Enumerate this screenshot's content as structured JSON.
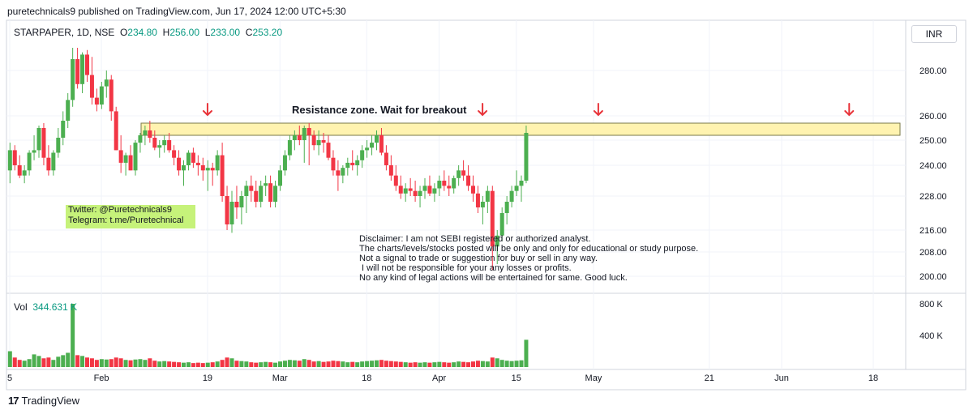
{
  "header": {
    "publish_line": "puretechnicals9 published on TradingView.com, Jun 17, 2024 12:00 UTC+5:30"
  },
  "legend": {
    "symbol": "STARPAPER, 1D, NSE",
    "o_label": "O",
    "o_value": "234.80",
    "h_label": "H",
    "h_value": "256.00",
    "l_label": "L",
    "l_value": "233.00",
    "c_label": "C",
    "c_value": "253.20"
  },
  "volume_legend": {
    "label": "Vol",
    "value": "344.631 K"
  },
  "currency_button": "INR",
  "annotations": {
    "resistance": "Resistance zone. Wait for breakout",
    "twitter": "Twitter: @Puretechnicals9",
    "telegram": "Telegram: t.me/Puretechnical",
    "disclaimer": [
      "Disclaimer: I am not SEBI registered or authorized analyst.",
      "The charts/levels/stocks posted will be only and only for educational or study purpose.",
      "Not a signal to trade or suggestion for buy or sell in any way.",
      " I will not be responsible for your any losses or profits.",
      "No any kind of legal actions will be entertained for same. Good luck."
    ]
  },
  "footer": {
    "brand": "TradingView"
  },
  "colors": {
    "up": "#4caf50",
    "down": "#f23645",
    "zone_fill": "#fff3b0",
    "zone_border": "#7a7a4a",
    "arrow": "#e8343a",
    "grid": "#f0f3fa",
    "axis_text": "#131722"
  },
  "chart_data": {
    "type": "candlestick",
    "price_ticks": [
      "280.00",
      "260.00",
      "250.00",
      "240.00",
      "228.00",
      "216.00",
      "208.00",
      "200.00"
    ],
    "price_tick_values": [
      280,
      260,
      250,
      240,
      228,
      216,
      208,
      200
    ],
    "volume_ticks": [
      "800 K",
      "400 K"
    ],
    "volume_tick_values": [
      800000,
      400000
    ],
    "x_labels": [
      {
        "label": "5",
        "index": 0
      },
      {
        "label": "Feb",
        "index": 19
      },
      {
        "label": "19",
        "index": 41
      },
      {
        "label": "Mar",
        "index": 56
      },
      {
        "label": "18",
        "index": 74
      },
      {
        "label": "Apr",
        "index": 89
      },
      {
        "label": "15",
        "index": 105
      },
      {
        "label": "May",
        "index": 121
      },
      {
        "label": "21",
        "index": 145
      },
      {
        "label": "Jun",
        "index": 160
      },
      {
        "label": "18",
        "index": 179
      }
    ],
    "resistance_zone": [
      252,
      257
    ],
    "arrow_indices": [
      41,
      98,
      122,
      174
    ],
    "candles": [
      [
        238,
        249,
        233,
        246,
        200000
      ],
      [
        246,
        248,
        238,
        240,
        120000
      ],
      [
        240,
        244,
        235,
        236,
        90000
      ],
      [
        236,
        240,
        233,
        238,
        80000
      ],
      [
        238,
        246,
        236,
        245,
        100000
      ],
      [
        245,
        252,
        242,
        246,
        160000
      ],
      [
        246,
        256,
        243,
        255,
        140000
      ],
      [
        255,
        257,
        240,
        243,
        110000
      ],
      [
        243,
        248,
        236,
        238,
        120000
      ],
      [
        238,
        246,
        236,
        245,
        90000
      ],
      [
        245,
        255,
        243,
        251,
        130000
      ],
      [
        251,
        262,
        248,
        258,
        150000
      ],
      [
        258,
        270,
        255,
        267,
        180000
      ],
      [
        267,
        290,
        264,
        285,
        800000
      ],
      [
        285,
        290,
        272,
        274,
        150000
      ],
      [
        274,
        288,
        270,
        287,
        140000
      ],
      [
        287,
        289,
        275,
        278,
        120000
      ],
      [
        278,
        286,
        265,
        268,
        110000
      ],
      [
        268,
        272,
        262,
        265,
        90000
      ],
      [
        265,
        275,
        263,
        273,
        100000
      ],
      [
        273,
        280,
        268,
        276,
        95000
      ],
      [
        276,
        278,
        258,
        262,
        100000
      ],
      [
        262,
        264,
        246,
        246,
        120000
      ],
      [
        246,
        252,
        237,
        241,
        110000
      ],
      [
        241,
        245,
        236,
        244,
        90000
      ],
      [
        244,
        248,
        238,
        238,
        85000
      ],
      [
        238,
        250,
        236,
        249,
        95000
      ],
      [
        249,
        253,
        245,
        252,
        100000
      ],
      [
        252,
        256,
        248,
        254,
        90000
      ],
      [
        254,
        258,
        249,
        251,
        110000
      ],
      [
        251,
        254,
        246,
        247,
        80000
      ],
      [
        247,
        250,
        243,
        248,
        70000
      ],
      [
        248,
        252,
        245,
        250,
        75000
      ],
      [
        250,
        253,
        245,
        246,
        70000
      ],
      [
        246,
        248,
        240,
        243,
        65000
      ],
      [
        243,
        246,
        236,
        238,
        60000
      ],
      [
        238,
        242,
        232,
        240,
        55000
      ],
      [
        240,
        246,
        238,
        245,
        60000
      ],
      [
        245,
        247,
        239,
        241,
        50000
      ],
      [
        241,
        244,
        236,
        240,
        55000
      ],
      [
        240,
        243,
        234,
        238,
        50000
      ],
      [
        238,
        242,
        230,
        239,
        55000
      ],
      [
        239,
        241,
        232,
        238,
        60000
      ],
      [
        238,
        246,
        236,
        244,
        70000
      ],
      [
        244,
        249,
        226,
        228,
        90000
      ],
      [
        228,
        232,
        216,
        218,
        120000
      ],
      [
        218,
        230,
        215,
        226,
        110000
      ],
      [
        226,
        232,
        220,
        224,
        80000
      ],
      [
        224,
        230,
        218,
        228,
        75000
      ],
      [
        228,
        234,
        222,
        232,
        70000
      ],
      [
        232,
        236,
        226,
        230,
        60000
      ],
      [
        230,
        234,
        224,
        226,
        55000
      ],
      [
        226,
        234,
        224,
        232,
        60000
      ],
      [
        232,
        236,
        228,
        233,
        65000
      ],
      [
        233,
        236,
        224,
        226,
        60000
      ],
      [
        226,
        234,
        224,
        232,
        55000
      ],
      [
        232,
        240,
        230,
        238,
        70000
      ],
      [
        238,
        246,
        236,
        244,
        80000
      ],
      [
        244,
        252,
        242,
        250,
        90000
      ],
      [
        250,
        254,
        246,
        252,
        85000
      ],
      [
        252,
        256,
        248,
        250,
        80000
      ],
      [
        250,
        256,
        241,
        255,
        100000
      ],
      [
        255,
        257,
        240,
        252,
        90000
      ],
      [
        252,
        254,
        246,
        248,
        70000
      ],
      [
        248,
        254,
        244,
        250,
        75000
      ],
      [
        250,
        253,
        245,
        249,
        65000
      ],
      [
        249,
        252,
        242,
        243,
        70000
      ],
      [
        243,
        246,
        236,
        238,
        80000
      ],
      [
        238,
        242,
        230,
        236,
        75000
      ],
      [
        236,
        240,
        233,
        239,
        70000
      ],
      [
        239,
        243,
        236,
        241,
        60000
      ],
      [
        241,
        246,
        238,
        240,
        65000
      ],
      [
        240,
        244,
        236,
        242,
        60000
      ],
      [
        242,
        248,
        239,
        246,
        70000
      ],
      [
        246,
        250,
        243,
        247,
        75000
      ],
      [
        247,
        252,
        244,
        249,
        80000
      ],
      [
        249,
        254,
        246,
        252,
        85000
      ],
      [
        252,
        255,
        244,
        245,
        90000
      ],
      [
        245,
        248,
        238,
        240,
        80000
      ],
      [
        240,
        244,
        234,
        236,
        75000
      ],
      [
        236,
        240,
        230,
        232,
        70000
      ],
      [
        232,
        236,
        227,
        229,
        65000
      ],
      [
        229,
        233,
        226,
        231,
        60000
      ],
      [
        231,
        235,
        228,
        230,
        55000
      ],
      [
        230,
        234,
        226,
        228,
        60000
      ],
      [
        228,
        232,
        224,
        230,
        55000
      ],
      [
        230,
        235,
        227,
        232,
        60000
      ],
      [
        232,
        236,
        228,
        229,
        55000
      ],
      [
        229,
        233,
        226,
        231,
        60000
      ],
      [
        231,
        236,
        228,
        234,
        65000
      ],
      [
        234,
        238,
        230,
        232,
        60000
      ],
      [
        232,
        236,
        228,
        231,
        55000
      ],
      [
        231,
        236,
        229,
        235,
        60000
      ],
      [
        235,
        240,
        232,
        238,
        70000
      ],
      [
        238,
        242,
        234,
        236,
        65000
      ],
      [
        236,
        240,
        230,
        232,
        60000
      ],
      [
        232,
        236,
        226,
        229,
        70000
      ],
      [
        229,
        232,
        222,
        224,
        80000
      ],
      [
        224,
        228,
        218,
        226,
        75000
      ],
      [
        226,
        232,
        222,
        230,
        70000
      ],
      [
        230,
        232,
        202,
        210,
        120000
      ],
      [
        210,
        216,
        204,
        214,
        110000
      ],
      [
        214,
        224,
        212,
        222,
        90000
      ],
      [
        222,
        228,
        218,
        226,
        80000
      ],
      [
        226,
        232,
        224,
        230,
        75000
      ],
      [
        230,
        238,
        228,
        232,
        80000
      ],
      [
        232,
        236,
        226,
        234,
        85000
      ],
      [
        234,
        256,
        233,
        253,
        344631
      ]
    ]
  }
}
